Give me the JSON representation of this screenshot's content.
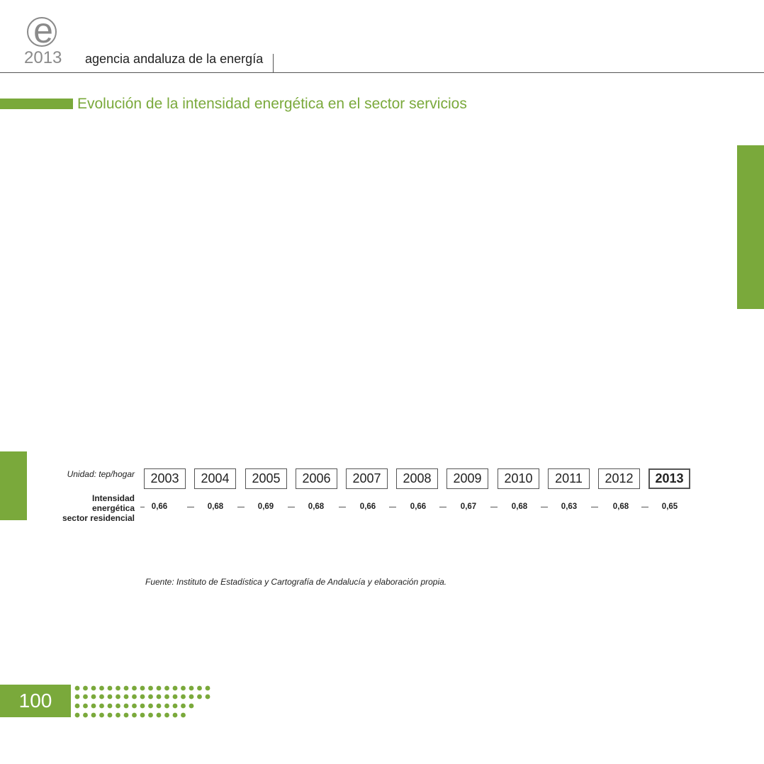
{
  "header": {
    "logo_letter": "e",
    "year": "2013",
    "agency": "agencia andaluza de la energía"
  },
  "title": "Evolución de la intensidad energética en el sector servicios",
  "colors": {
    "accent": "#7aa93b",
    "text": "#222222",
    "gray": "#8a8a8a"
  },
  "table": {
    "unit": "Unidad: tep/hogar",
    "row_label_lines": [
      "Intensidad",
      "energética",
      "sector residencial"
    ],
    "years": [
      "2003",
      "2004",
      "2005",
      "2006",
      "2007",
      "2008",
      "2009",
      "2010",
      "2011",
      "2012",
      "2013"
    ],
    "values": [
      "0,66",
      "0,68",
      "0,69",
      "0,68",
      "0,66",
      "0,66",
      "0,67",
      "0,68",
      "0,63",
      "0,68",
      "0,65"
    ]
  },
  "source": "Fuente: Instituto de Estadística y Cartografía de Andalucía y elaboración propia.",
  "footer": {
    "page_number": "100"
  }
}
